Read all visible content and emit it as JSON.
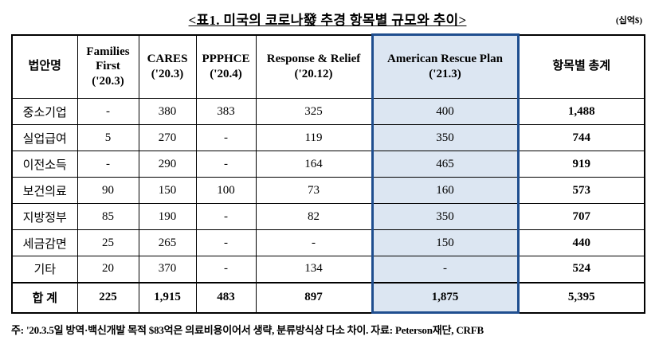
{
  "title": "<표1. 미국의 코로나發 추경 항목별 규모와 추이>",
  "unit": "(십억$)",
  "table": {
    "columns": [
      {
        "name": "법안명",
        "date": ""
      },
      {
        "name": "Families First",
        "date": "('20.3)"
      },
      {
        "name": "CARES",
        "date": "('20.3)"
      },
      {
        "name": "PPPHCE",
        "date": "('20.4)"
      },
      {
        "name": "Response & Relief",
        "date": "('20.12)"
      },
      {
        "name": "American Rescue Plan",
        "date": "('21.3)"
      },
      {
        "name": "항목별 총계",
        "date": ""
      }
    ],
    "rows": [
      {
        "label": "중소기업",
        "values": [
          "-",
          "380",
          "383",
          "325",
          "400",
          "1,488"
        ]
      },
      {
        "label": "실업급여",
        "values": [
          "5",
          "270",
          "-",
          "119",
          "350",
          "744"
        ]
      },
      {
        "label": "이전소득",
        "values": [
          "-",
          "290",
          "-",
          "164",
          "465",
          "919"
        ]
      },
      {
        "label": "보건의료",
        "values": [
          "90",
          "150",
          "100",
          "73",
          "160",
          "573"
        ]
      },
      {
        "label": "지방정부",
        "values": [
          "85",
          "190",
          "-",
          "82",
          "350",
          "707"
        ]
      },
      {
        "label": "세금감면",
        "values": [
          "25",
          "265",
          "-",
          "-",
          "150",
          "440"
        ]
      },
      {
        "label": "기타",
        "values": [
          "20",
          "370",
          "-",
          "134",
          "-",
          "524"
        ]
      }
    ],
    "total_row": {
      "label": "합 계",
      "values": [
        "225",
        "1,915",
        "483",
        "897",
        "1,875",
        "5,395"
      ]
    }
  },
  "footnote": "주: '20.3.5일 방역·백신개발 목적 $83억은 의료비용이어서 생략, 분류방식상 다소 차이. 자료: Peterson재단, CRFB",
  "colors": {
    "highlight_fill": "#dce6f2",
    "highlight_border": "#1f4e8f"
  }
}
